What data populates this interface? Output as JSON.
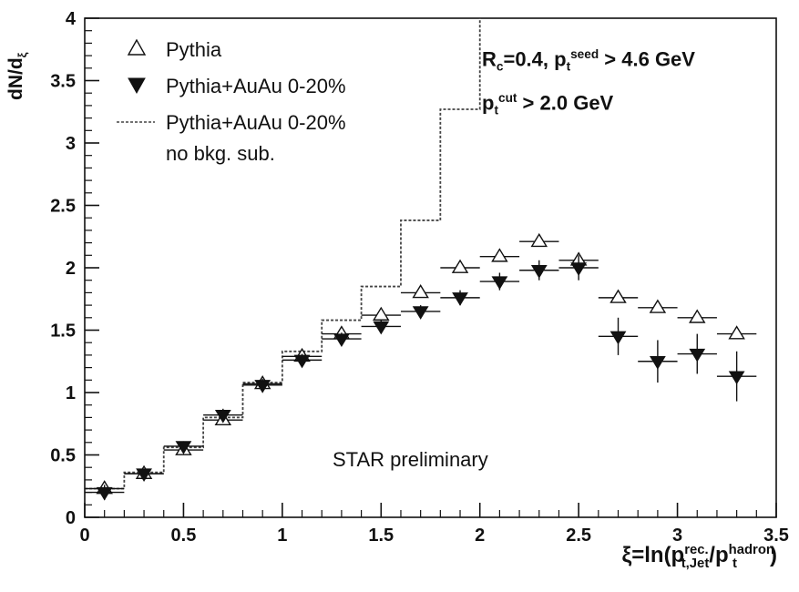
{
  "chart_data": {
    "type": "scatter",
    "title": "",
    "xlabel": "ξ=ln(p_t.Jet^rec. / p_t^hadron)",
    "ylabel": "dN/dξ",
    "xlim": [
      0,
      3.5
    ],
    "ylim": [
      0,
      4
    ],
    "x_ticks": [
      "0",
      "0.5",
      "1",
      "1.5",
      "2",
      "2.5",
      "3",
      "3.5"
    ],
    "y_ticks": [
      "0",
      "0.5",
      "1",
      "1.5",
      "2",
      "2.5",
      "3",
      "3.5",
      "4"
    ],
    "grid": false,
    "legend_position": "top-left",
    "legend": [
      {
        "marker": "open-triangle-up",
        "label": "Pythia"
      },
      {
        "marker": "filled-triangle-down",
        "label": "Pythia+AuAu 0-20%"
      },
      {
        "marker": "dashed-line",
        "label": "Pythia+AuAu 0-20%",
        "label2": "no bkg. sub."
      }
    ],
    "annotations": {
      "line1": {
        "pre": "R",
        "sub1": "c",
        "mid": "=0.4, p",
        "sub2": "t",
        "sup2": "seed",
        "post": " > 4.6 GeV"
      },
      "line2": {
        "pre": "p",
        "sub1": "t",
        "sup1": "cut",
        "post": " > 2.0 GeV"
      },
      "star": "STAR preliminary"
    },
    "axis_title_parts": {
      "x_main": "ξ=ln(p",
      "x_sup1": "rec.",
      "x_sub1": "t,Jet",
      "x_mid": "/p",
      "x_sup2": "hadron",
      "x_sub2": "t",
      "x_end": ")",
      "y_main": "dN/d",
      "y_sub": "ξ"
    },
    "series": [
      {
        "name": "Pythia",
        "marker": "open-triangle-up",
        "x": [
          0.1,
          0.3,
          0.5,
          0.7,
          0.9,
          1.1,
          1.3,
          1.5,
          1.7,
          1.9,
          2.1,
          2.3,
          2.5,
          2.7,
          2.9,
          3.1,
          3.3
        ],
        "y": [
          0.23,
          0.35,
          0.54,
          0.78,
          1.07,
          1.29,
          1.47,
          1.62,
          1.8,
          2.0,
          2.09,
          2.21,
          2.06,
          1.76,
          1.68,
          1.6,
          1.47
        ],
        "yerr": [
          0.02,
          0.02,
          0.02,
          0.02,
          0.02,
          0.02,
          0.02,
          0.02,
          0.02,
          0.02,
          0.02,
          0.02,
          0.03,
          0.03,
          0.03,
          0.03,
          0.03
        ]
      },
      {
        "name": "Pythia+AuAu 0-20%",
        "marker": "filled-triangle-down",
        "x": [
          0.1,
          0.3,
          0.5,
          0.7,
          0.9,
          1.1,
          1.3,
          1.5,
          1.7,
          1.9,
          2.1,
          2.3,
          2.5,
          2.7,
          2.9,
          3.1,
          3.3
        ],
        "y": [
          0.2,
          0.35,
          0.57,
          0.82,
          1.06,
          1.26,
          1.43,
          1.53,
          1.65,
          1.76,
          1.89,
          1.98,
          2.0,
          1.45,
          1.25,
          1.31,
          1.13
        ],
        "yerr": [
          0.06,
          0.04,
          0.04,
          0.05,
          0.05,
          0.05,
          0.05,
          0.05,
          0.05,
          0.06,
          0.07,
          0.08,
          0.1,
          0.15,
          0.17,
          0.16,
          0.2
        ]
      },
      {
        "name": "Pythia+AuAu 0-20% no bkg. sub.",
        "style": "dashed-step",
        "edges": [
          0,
          0.2,
          0.4,
          0.6,
          0.8,
          1.0,
          1.2,
          1.4,
          1.6,
          1.8,
          2.0
        ],
        "y": [
          0.23,
          0.36,
          0.56,
          0.8,
          1.08,
          1.33,
          1.58,
          1.85,
          2.38,
          3.27,
          4.0
        ]
      }
    ],
    "colors": {
      "ink": "#111111",
      "axis": "#111111",
      "step": "#444444"
    }
  }
}
